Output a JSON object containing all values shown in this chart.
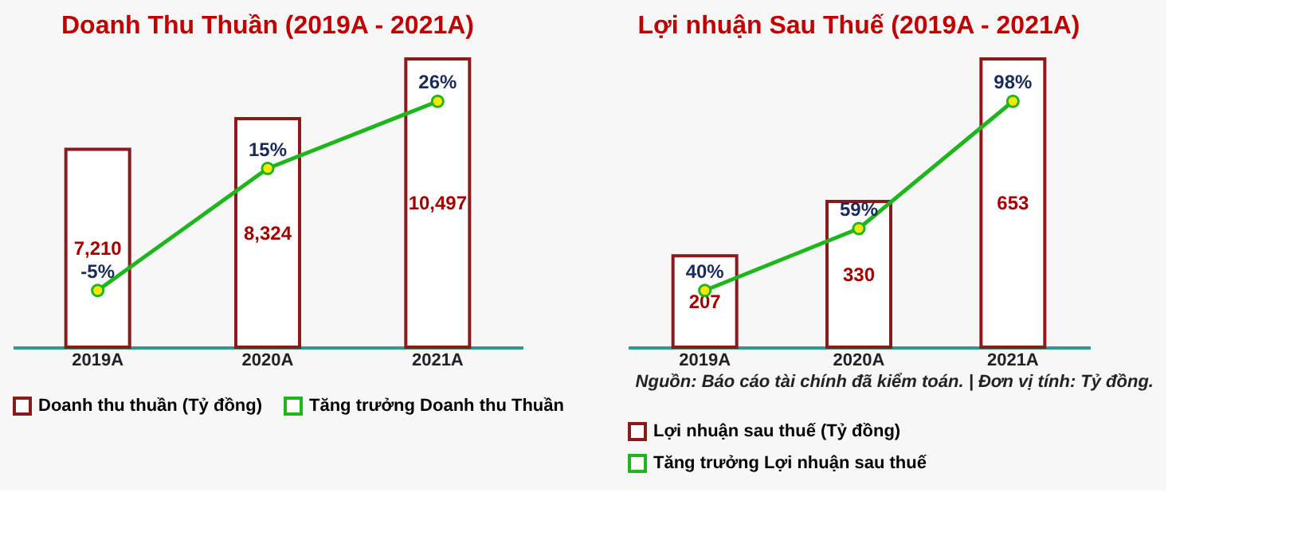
{
  "chart_data": [
    {
      "type": "bar",
      "title": "Doanh Thu Thuần (2019A - 2021A)",
      "categories": [
        "2019A",
        "2020A",
        "2021A"
      ],
      "series": [
        {
          "name": "Doanh thu thuần (Tỷ đồng)",
          "color": "#8b1a1a",
          "values": [
            7210,
            8324,
            10497
          ],
          "value_labels": [
            "7,210",
            "8,324",
            "10,497"
          ]
        },
        {
          "name": "Tăng trưởng Doanh thu Thuần",
          "type": "line",
          "axis": "y2",
          "color": "#1fb51f",
          "values": [
            -5,
            15,
            26
          ],
          "value_labels": [
            "-5%",
            "15%",
            "26%"
          ]
        }
      ],
      "legend": "bottom",
      "marker": "circle"
    },
    {
      "type": "bar",
      "title": "Lợi nhuận Sau Thuế (2019A - 2021A)",
      "categories": [
        "2019A",
        "2020A",
        "2021A"
      ],
      "series": [
        {
          "name": "Lợi nhuận sau thuế (Tỷ đồng)",
          "color": "#8b1a1a",
          "values": [
            207,
            330,
            653
          ],
          "value_labels": [
            "207",
            "330",
            "653"
          ]
        },
        {
          "name": "Tăng trưởng Lợi nhuận sau thuế",
          "type": "line",
          "axis": "y2",
          "color": "#1fb51f",
          "values": [
            40,
            59,
            98
          ],
          "value_labels": [
            "40%",
            "59%",
            "98%"
          ]
        }
      ],
      "legend": "bottom",
      "marker": "circle",
      "annotations": [
        "Nguồn: Báo cáo tài chính đã kiểm toán. | Đơn vị tính: Tỷ đồng."
      ]
    }
  ]
}
